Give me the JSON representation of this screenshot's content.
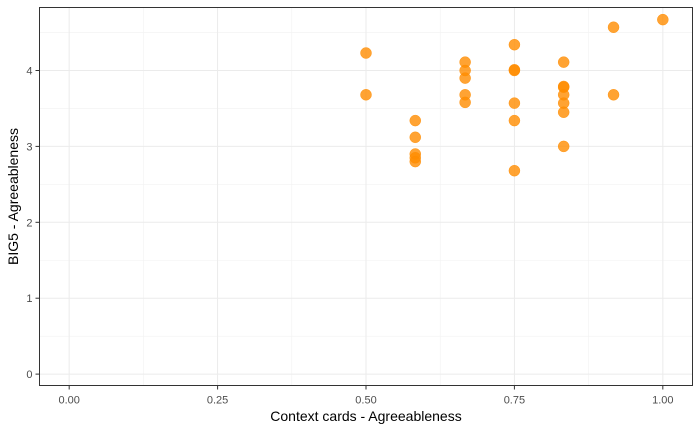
{
  "chart_data": {
    "type": "scatter",
    "title": "",
    "xlabel": "Context cards - Agreeableness",
    "ylabel": "BIG5 - Agreeableness",
    "xlim": [
      -0.05,
      1.05
    ],
    "ylim": [
      -0.15,
      4.83
    ],
    "x_ticks": [
      0.0,
      0.25,
      0.5,
      0.75,
      1.0
    ],
    "x_tick_labels": [
      "0.00",
      "0.25",
      "0.50",
      "0.75",
      "1.00"
    ],
    "y_ticks": [
      0,
      1,
      2,
      3,
      4
    ],
    "y_tick_labels": [
      "0",
      "1",
      "2",
      "3",
      "4"
    ],
    "grid": true,
    "theme": "bw",
    "point_color": "#FF8C00",
    "point_opacity": 0.8,
    "points": [
      {
        "x": 0.5,
        "y": 4.23
      },
      {
        "x": 0.5,
        "y": 3.68
      },
      {
        "x": 0.583,
        "y": 3.34
      },
      {
        "x": 0.583,
        "y": 3.12
      },
      {
        "x": 0.583,
        "y": 2.9
      },
      {
        "x": 0.583,
        "y": 2.85
      },
      {
        "x": 0.583,
        "y": 2.8
      },
      {
        "x": 0.667,
        "y": 4.11
      },
      {
        "x": 0.667,
        "y": 4.0
      },
      {
        "x": 0.667,
        "y": 3.9
      },
      {
        "x": 0.667,
        "y": 3.68
      },
      {
        "x": 0.667,
        "y": 3.58
      },
      {
        "x": 0.75,
        "y": 4.34
      },
      {
        "x": 0.75,
        "y": 4.01
      },
      {
        "x": 0.75,
        "y": 4.0
      },
      {
        "x": 0.75,
        "y": 3.57
      },
      {
        "x": 0.75,
        "y": 3.34
      },
      {
        "x": 0.75,
        "y": 2.68
      },
      {
        "x": 0.833,
        "y": 4.11
      },
      {
        "x": 0.833,
        "y": 3.79
      },
      {
        "x": 0.833,
        "y": 3.78
      },
      {
        "x": 0.833,
        "y": 3.68
      },
      {
        "x": 0.833,
        "y": 3.57
      },
      {
        "x": 0.833,
        "y": 3.45
      },
      {
        "x": 0.833,
        "y": 3.0
      },
      {
        "x": 0.917,
        "y": 4.57
      },
      {
        "x": 0.917,
        "y": 3.68
      },
      {
        "x": 1.0,
        "y": 4.67
      }
    ]
  }
}
